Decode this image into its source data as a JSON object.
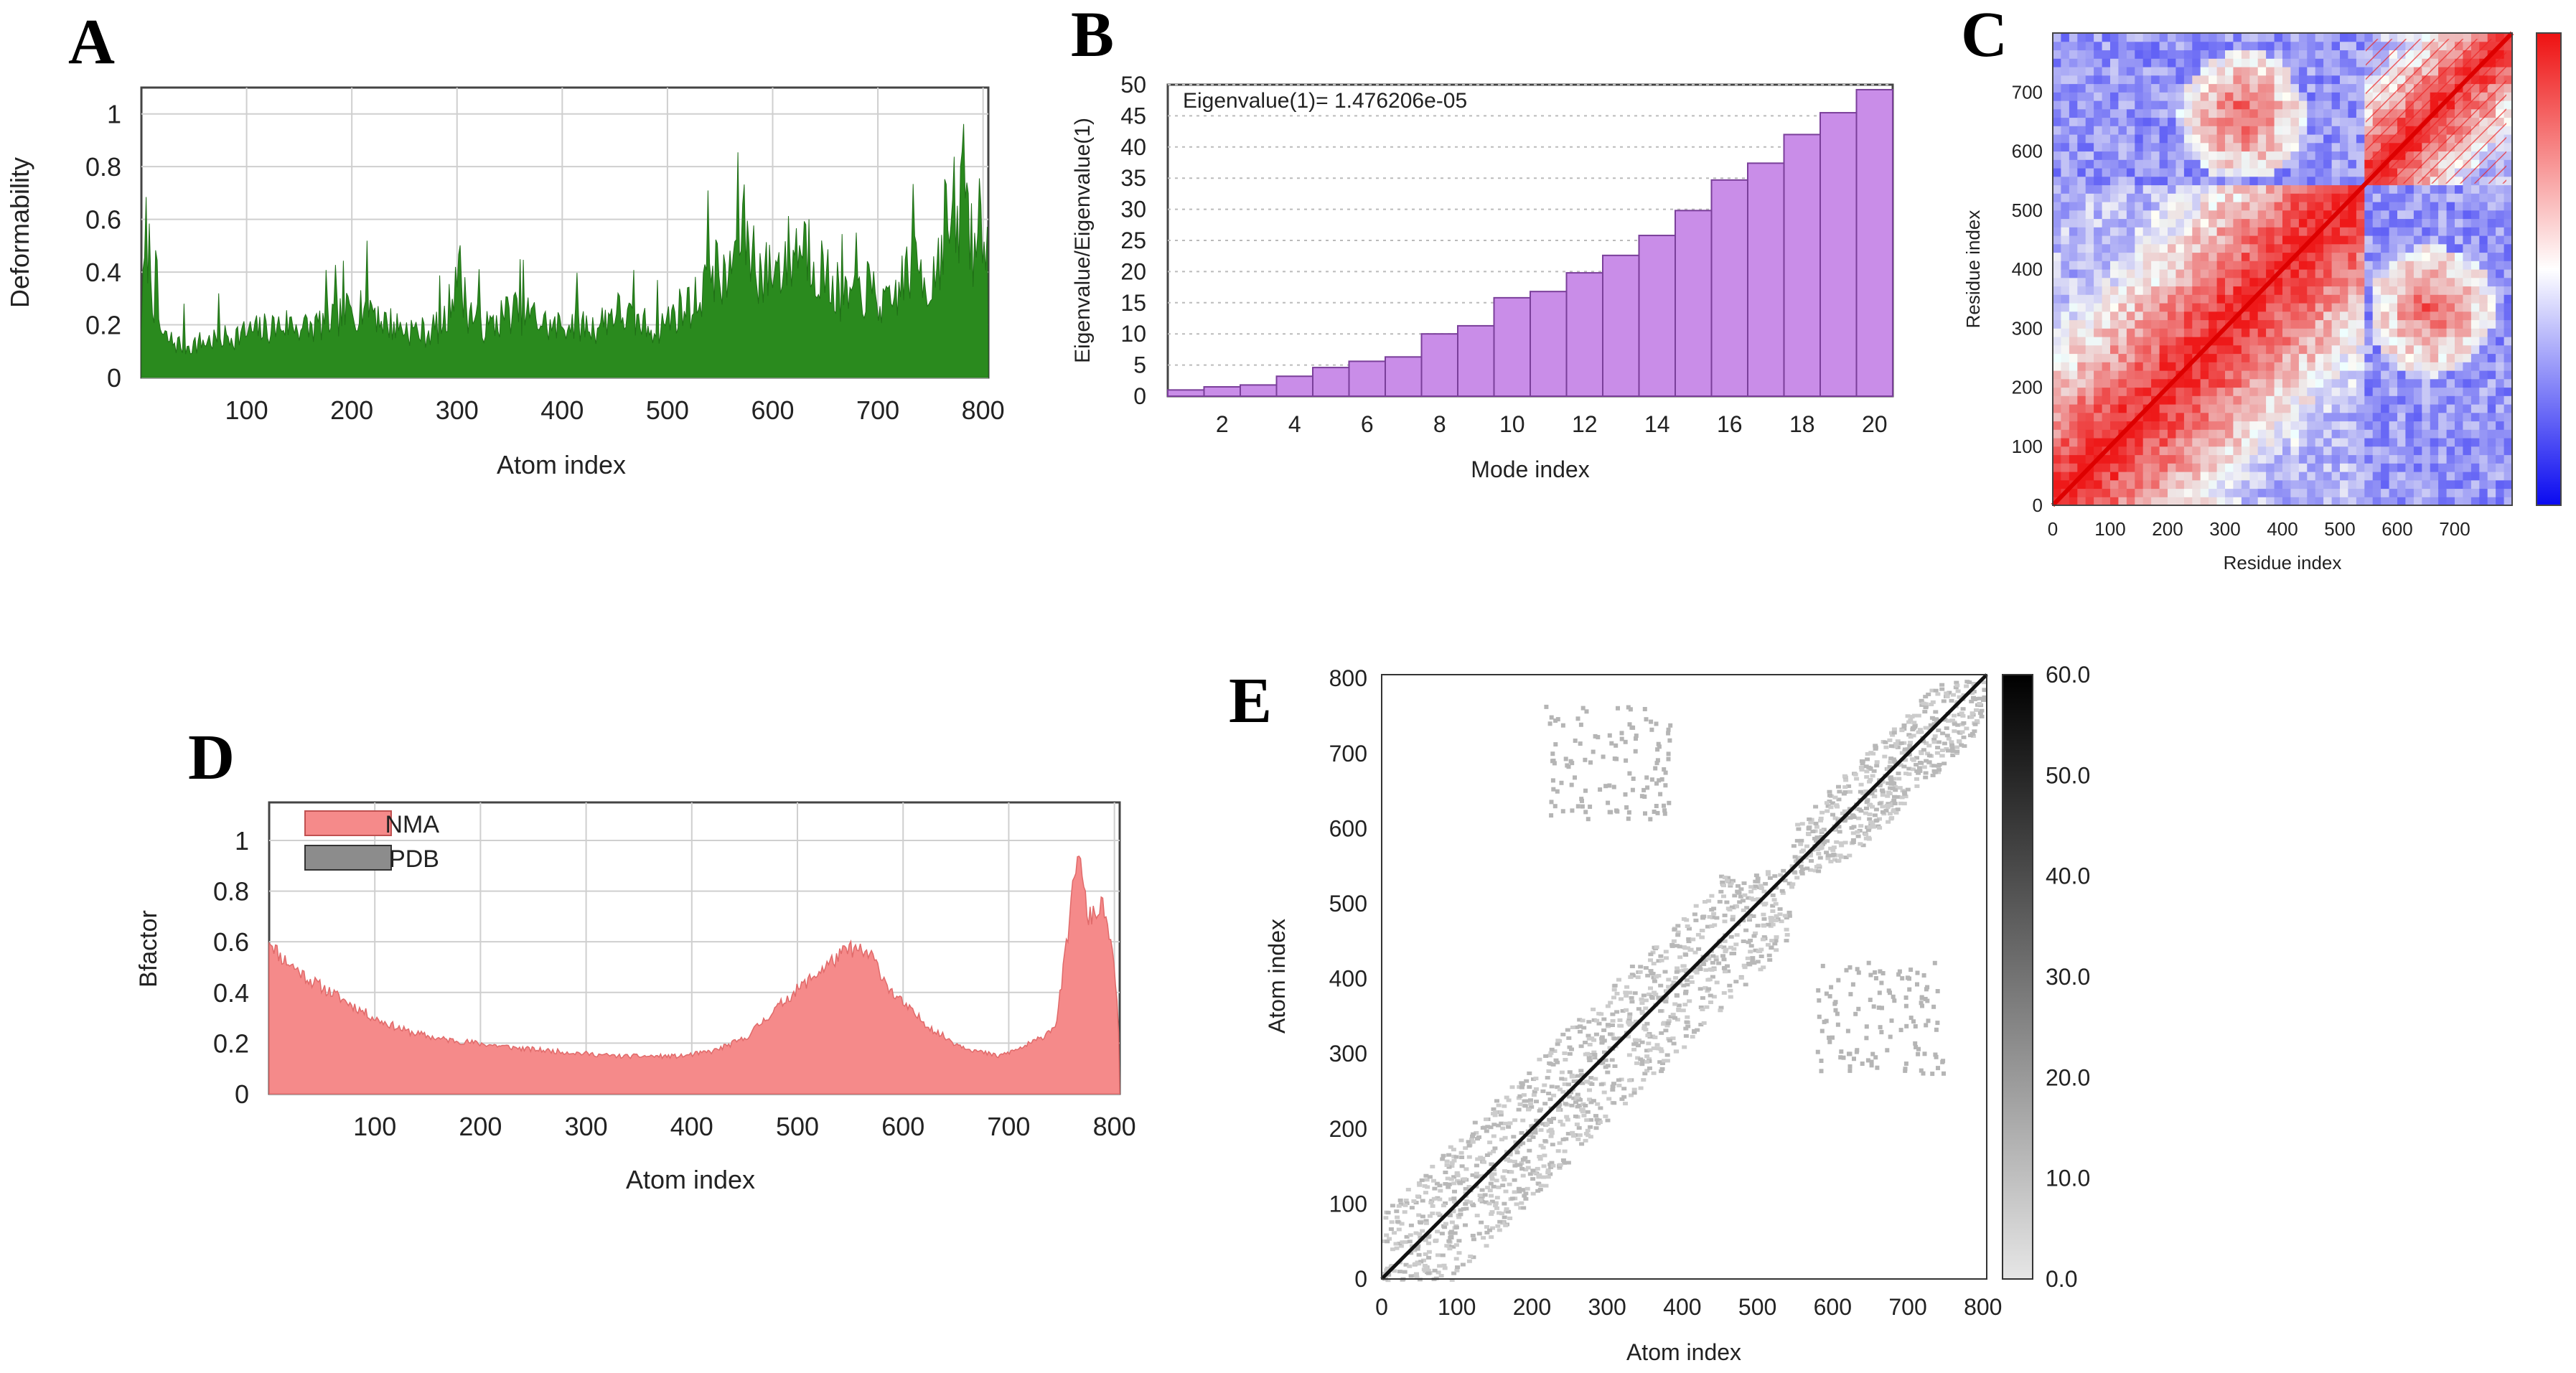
{
  "chart_data": [
    {
      "panel": "A",
      "type": "area",
      "ylabel": "Deformability",
      "xlabel": "Atom index",
      "xlim": [
        0,
        805
      ],
      "ylim": [
        0,
        1.1
      ],
      "xticks": [
        100,
        200,
        300,
        400,
        500,
        600,
        700,
        800
      ],
      "yticks": [
        0,
        0.2,
        0.4,
        0.6,
        0.8,
        1
      ],
      "ytick_labels": [
        "0",
        "0.2",
        "0.4",
        "0.6",
        "0.8",
        "1"
      ],
      "grid": true,
      "color": "#2a8a1e",
      "x": [
        0,
        5,
        12,
        20,
        40,
        60,
        80,
        100,
        120,
        140,
        160,
        180,
        200,
        215,
        230,
        250,
        270,
        290,
        300,
        310,
        330,
        350,
        370,
        390,
        410,
        430,
        450,
        470,
        490,
        510,
        530,
        540,
        555,
        570,
        590,
        610,
        630,
        650,
        670,
        690,
        710,
        725,
        735,
        750,
        765,
        775,
        782,
        790,
        800,
        805
      ],
      "y": [
        0.25,
        0.66,
        0.35,
        0.18,
        0.14,
        0.16,
        0.18,
        0.2,
        0.22,
        0.24,
        0.22,
        0.26,
        0.3,
        0.35,
        0.25,
        0.22,
        0.2,
        0.25,
        0.52,
        0.3,
        0.22,
        0.3,
        0.28,
        0.22,
        0.25,
        0.22,
        0.3,
        0.25,
        0.22,
        0.3,
        0.35,
        0.55,
        0.4,
        0.7,
        0.45,
        0.52,
        0.62,
        0.45,
        0.35,
        0.4,
        0.3,
        0.45,
        0.55,
        0.4,
        0.72,
        0.6,
        1.0,
        0.55,
        0.8,
        0.6
      ]
    },
    {
      "panel": "B",
      "type": "bar",
      "ylabel": "Eigenvalue/Eigenvalue(1)",
      "xlabel": "Mode index",
      "annotation": "Eigenvalue(1)= 1.476206e-05",
      "categories": [
        1,
        2,
        3,
        4,
        5,
        6,
        7,
        8,
        9,
        10,
        11,
        12,
        13,
        14,
        15,
        16,
        17,
        18,
        19,
        20
      ],
      "values": [
        1,
        1.5,
        1.8,
        3.2,
        4.6,
        5.6,
        6.3,
        10,
        11.3,
        15.8,
        16.8,
        19.8,
        22.6,
        25.8,
        29.8,
        34.7,
        37.4,
        42,
        45.5,
        49.2
      ],
      "xticks": [
        2,
        4,
        6,
        8,
        10,
        12,
        14,
        16,
        18,
        20
      ],
      "yticks": [
        0,
        5,
        10,
        15,
        20,
        25,
        30,
        35,
        40,
        45,
        50
      ],
      "ylim": [
        0,
        50
      ],
      "color": "#c98de8"
    },
    {
      "panel": "C",
      "type": "heatmap",
      "xlabel": "Residue index",
      "ylabel": "Residue index",
      "xticks": [
        0,
        100,
        200,
        300,
        400,
        500,
        600,
        700
      ],
      "yticks": [
        0,
        100,
        200,
        300,
        400,
        500,
        600,
        700
      ],
      "domains": [
        [
          0,
          540
        ],
        [
          545,
          790
        ]
      ],
      "offdiag_blocks": [
        [
          300,
          650
        ],
        [
          650,
          330
        ]
      ],
      "colormap": [
        "#1010f0",
        "#ffffff",
        "#ee1111"
      ]
    },
    {
      "panel": "D",
      "type": "area",
      "ylabel": "Bfactor",
      "xlabel": "Atom index",
      "legend": [
        "NMA",
        "PDB"
      ],
      "legend_colors": [
        "#f58a8a",
        "#8c8c8c"
      ],
      "xlim": [
        0,
        805
      ],
      "ylim": [
        0,
        1.15
      ],
      "xticks": [
        100,
        200,
        300,
        400,
        500,
        600,
        700,
        800
      ],
      "yticks": [
        0,
        0.2,
        0.4,
        0.6,
        0.8,
        1
      ],
      "ytick_labels": [
        "0",
        "0.2",
        "0.4",
        "0.6",
        "0.8",
        "1"
      ],
      "grid": true,
      "x": [
        0,
        10,
        25,
        40,
        60,
        80,
        100,
        130,
        160,
        200,
        240,
        270,
        300,
        330,
        360,
        390,
        420,
        450,
        470,
        490,
        510,
        530,
        550,
        570,
        590,
        610,
        630,
        650,
        670,
        690,
        710,
        730,
        745,
        755,
        765,
        775,
        790,
        800,
        805
      ],
      "y": [
        0.62,
        0.55,
        0.5,
        0.45,
        0.4,
        0.35,
        0.3,
        0.25,
        0.22,
        0.2,
        0.18,
        0.17,
        0.16,
        0.15,
        0.15,
        0.15,
        0.17,
        0.22,
        0.3,
        0.38,
        0.45,
        0.52,
        0.58,
        0.55,
        0.4,
        0.32,
        0.25,
        0.2,
        0.17,
        0.15,
        0.18,
        0.22,
        0.28,
        0.6,
        0.98,
        0.7,
        0.75,
        0.5,
        0.2
      ]
    },
    {
      "panel": "E",
      "type": "heatmap",
      "xlabel": "Atom index",
      "ylabel": "Atom index",
      "xticks": [
        0,
        100,
        200,
        300,
        400,
        500,
        600,
        700,
        800
      ],
      "yticks": [
        0,
        100,
        200,
        300,
        400,
        500,
        600,
        700,
        800
      ],
      "colorbar_ticks": [
        "0.0",
        "10.0",
        "20.0",
        "30.0",
        "40.0",
        "50.0",
        "60.0"
      ],
      "domains": [
        [
          0,
          545
        ],
        [
          545,
          800
        ]
      ],
      "contact_clusters": [
        [
          300,
          690
        ],
        [
          660,
          350
        ]
      ],
      "colormap": [
        "#e8e8e8",
        "#000000"
      ]
    }
  ]
}
